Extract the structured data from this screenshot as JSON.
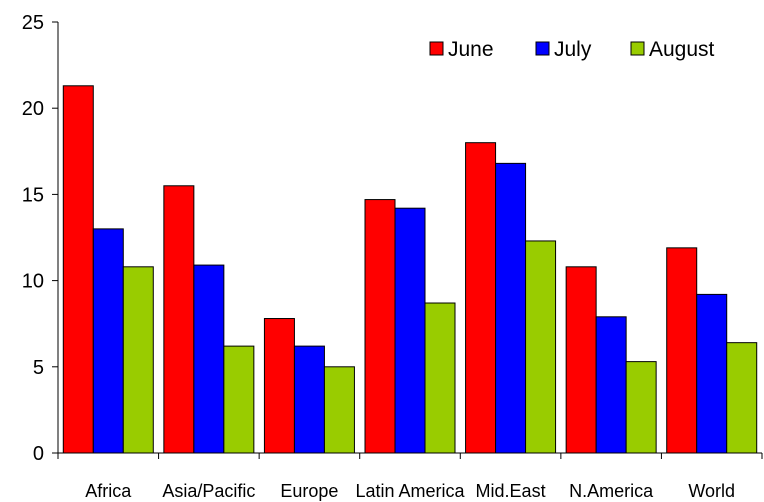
{
  "chart_data": {
    "type": "bar",
    "title": "",
    "xlabel": "",
    "ylabel": "",
    "ylim": [
      0,
      25
    ],
    "yticks": [
      0,
      5,
      10,
      15,
      20,
      25
    ],
    "grid": false,
    "legend_position": "top-right",
    "categories": [
      "Africa",
      "Asia/Pacific",
      "Europe",
      "Latin America",
      "Mid.East",
      "N.America",
      "World"
    ],
    "series": [
      {
        "name": "June",
        "color": "#ff0000",
        "values": [
          21.3,
          15.5,
          7.8,
          14.7,
          18.0,
          10.8,
          11.9
        ]
      },
      {
        "name": "July",
        "color": "#0000ff",
        "values": [
          13.0,
          10.9,
          6.2,
          14.2,
          16.8,
          7.9,
          9.2
        ]
      },
      {
        "name": "August",
        "color": "#99cc00",
        "values": [
          10.8,
          6.2,
          5.0,
          8.7,
          12.3,
          5.3,
          6.4
        ]
      }
    ]
  }
}
